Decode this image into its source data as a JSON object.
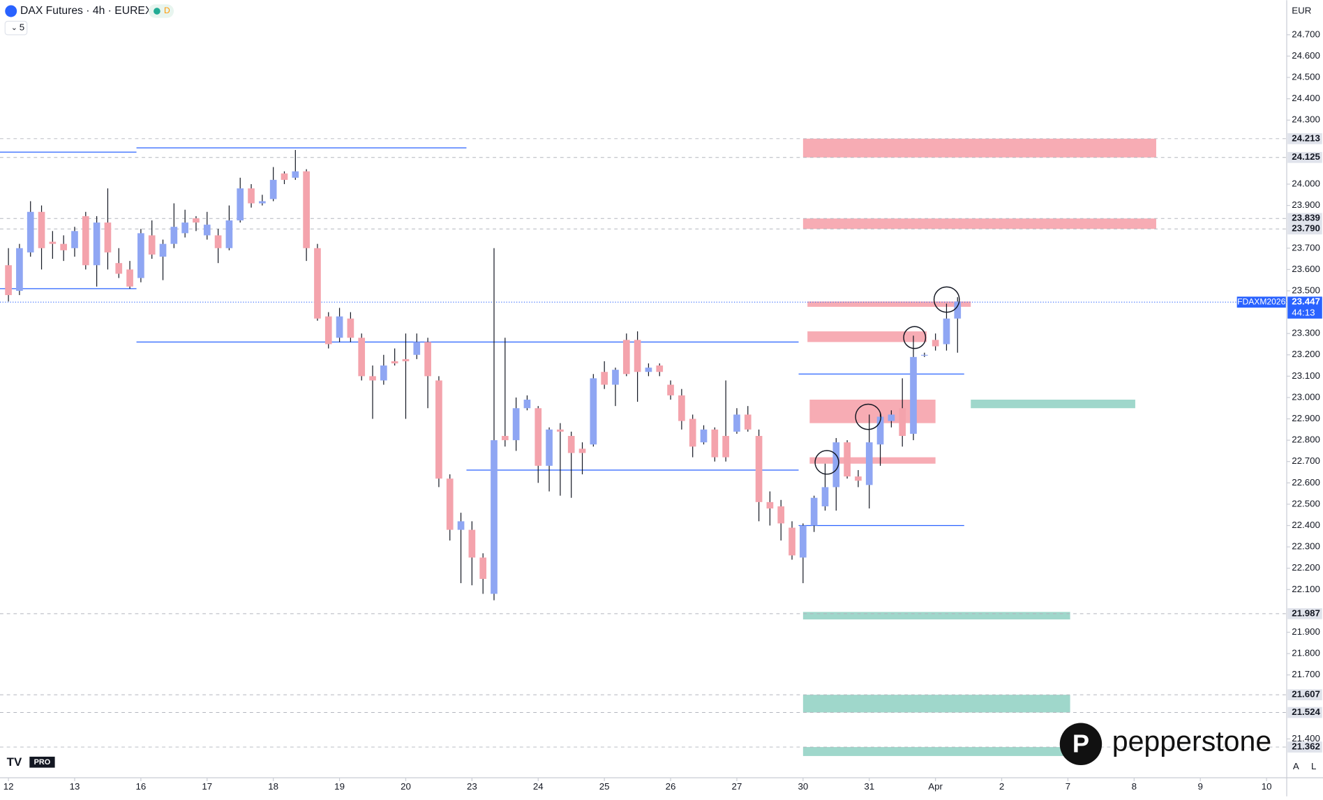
{
  "chart_data": {
    "type": "candlestick",
    "title": "DAX Futures · 4h · EUREX",
    "timeframe_badge": "D",
    "indicator_count": "5",
    "currency": "EUR",
    "watermark": "pepperstone",
    "logo_badge": "PRO",
    "scale_buttons": [
      "A",
      "L"
    ],
    "up_color": "#8fa6f3",
    "down_color": "#f4a3ac",
    "open": [
      23620,
      23500,
      23680,
      23870,
      23730,
      23720,
      23700,
      23850,
      23620,
      23820,
      23630,
      23600,
      23560,
      23760,
      23660,
      23720,
      23770,
      23840,
      23760,
      23760,
      23700,
      23830,
      23980,
      23910,
      23930,
      24050,
      24030,
      24060,
      23700,
      23380,
      23280,
      23370,
      23280,
      23100,
      23080,
      23170,
      23180,
      23200,
      23260,
      23080,
      22620,
      22380,
      22380,
      22250,
      22080,
      22820,
      22800,
      22950,
      22950,
      22680,
      22850,
      22820,
      22760,
      22780,
      23120,
      23060,
      23270,
      23270,
      23120,
      23150,
      23060,
      23010,
      22900,
      22790,
      22850,
      22820,
      22840,
      22920,
      22820,
      22510,
      22490,
      22390,
      22250,
      22400,
      22490,
      22580,
      22790,
      22630,
      22590,
      22780,
      22890,
      22950,
      22830,
      23200,
      23270,
      23250,
      23370
    ],
    "high": [
      23700,
      23720,
      23920,
      23900,
      23780,
      23760,
      23800,
      23870,
      23850,
      23980,
      23700,
      23640,
      23790,
      23830,
      23740,
      23910,
      23880,
      23850,
      23870,
      23790,
      23900,
      24030,
      24000,
      23950,
      24080,
      24060,
      24160,
      24070,
      23720,
      23400,
      23420,
      23400,
      23300,
      23150,
      23200,
      23230,
      23300,
      23300,
      23280,
      23100,
      22640,
      22460,
      22420,
      22270,
      23700,
      23280,
      23000,
      23010,
      22960,
      22860,
      22880,
      22840,
      22790,
      23110,
      23170,
      23140,
      23300,
      23310,
      23160,
      23160,
      23080,
      23040,
      22920,
      22870,
      22860,
      23080,
      22950,
      22960,
      22850,
      22560,
      22520,
      22420,
      22410,
      22540,
      22690,
      22810,
      22800,
      22660,
      22920,
      22930,
      22940,
      23090,
      23290,
      23210,
      23300,
      23440,
      23470
    ],
    "low": [
      23450,
      23480,
      23660,
      23600,
      23650,
      23640,
      23660,
      23600,
      23520,
      23600,
      23560,
      23510,
      23540,
      23650,
      23550,
      23700,
      23750,
      23780,
      23740,
      23630,
      23690,
      23820,
      23890,
      23900,
      23920,
      24000,
      24020,
      23640,
      23360,
      23230,
      23260,
      23260,
      23080,
      22900,
      23060,
      23150,
      22900,
      23180,
      22950,
      22580,
      22330,
      22130,
      22120,
      22080,
      22050,
      22770,
      22750,
      22940,
      22600,
      22560,
      22540,
      22530,
      22640,
      22770,
      23040,
      22960,
      23100,
      22980,
      23100,
      23100,
      22990,
      22850,
      22720,
      22780,
      22700,
      22700,
      22830,
      22840,
      22420,
      22400,
      22330,
      22240,
      22130,
      22370,
      22470,
      22470,
      22620,
      22580,
      22480,
      22680,
      22860,
      22770,
      22800,
      23190,
      23220,
      23220,
      23210
    ],
    "close": [
      23480,
      23700,
      23870,
      23700,
      23720,
      23690,
      23780,
      23620,
      23820,
      23680,
      23580,
      23520,
      23770,
      23670,
      23720,
      23800,
      23820,
      23820,
      23810,
      23700,
      23830,
      23980,
      23910,
      23920,
      24020,
      24020,
      24060,
      23700,
      23370,
      23250,
      23380,
      23280,
      23100,
      23080,
      23150,
      23160,
      23170,
      23260,
      23100,
      22620,
      22380,
      22420,
      22250,
      22150,
      22800,
      22800,
      22950,
      22990,
      22680,
      22850,
      22840,
      22740,
      22740,
      23090,
      23060,
      23130,
      23110,
      23120,
      23140,
      23120,
      23010,
      22890,
      22770,
      22850,
      22720,
      22720,
      22920,
      22850,
      22510,
      22480,
      22410,
      22260,
      22400,
      22530,
      22580,
      22790,
      22630,
      22610,
      22790,
      22910,
      22920,
      22820,
      23190,
      23200,
      23240,
      23370,
      23450
    ],
    "xticks": [
      {
        "value": 0,
        "label": "12"
      },
      {
        "value": 6,
        "label": "13"
      },
      {
        "value": 12,
        "label": "16"
      },
      {
        "value": 18,
        "label": "17"
      },
      {
        "value": 24,
        "label": "18"
      },
      {
        "value": 30,
        "label": "19"
      },
      {
        "value": 36,
        "label": "20"
      },
      {
        "value": 42,
        "label": "23"
      },
      {
        "value": 48,
        "label": "24"
      },
      {
        "value": 54,
        "label": "25"
      },
      {
        "value": 60,
        "label": "26"
      },
      {
        "value": 66,
        "label": "27"
      },
      {
        "value": 72,
        "label": "30"
      },
      {
        "value": 78,
        "label": "31"
      },
      {
        "value": 84,
        "label": "Apr"
      },
      {
        "value": 90,
        "label": "2"
      },
      {
        "value": 96,
        "label": "7"
      },
      {
        "value": 102,
        "label": "8"
      },
      {
        "value": 108,
        "label": "9"
      },
      {
        "value": 114,
        "label": "10"
      }
    ],
    "ylim": [
      21218,
      24862
    ],
    "yticks": [
      {
        "value": 24700,
        "label": "24.700"
      },
      {
        "value": 24600,
        "label": "24.600"
      },
      {
        "value": 24500,
        "label": "24.500"
      },
      {
        "value": 24400,
        "label": "24.400"
      },
      {
        "value": 24300,
        "label": "24.300"
      },
      {
        "value": 24000,
        "label": "24.000"
      },
      {
        "value": 23900,
        "label": "23.900"
      },
      {
        "value": 23700,
        "label": "23.700"
      },
      {
        "value": 23600,
        "label": "23.600"
      },
      {
        "value": 23500,
        "label": "23.500"
      },
      {
        "value": 23300,
        "label": "23.300"
      },
      {
        "value": 23200,
        "label": "23.200"
      },
      {
        "value": 23100,
        "label": "23.100"
      },
      {
        "value": 23000,
        "label": "23.000"
      },
      {
        "value": 22900,
        "label": "22.900"
      },
      {
        "value": 22800,
        "label": "22.800"
      },
      {
        "value": 22700,
        "label": "22.700"
      },
      {
        "value": 22600,
        "label": "22.600"
      },
      {
        "value": 22500,
        "label": "22.500"
      },
      {
        "value": 22400,
        "label": "22.400"
      },
      {
        "value": 22300,
        "label": "22.300"
      },
      {
        "value": 22200,
        "label": "22.200"
      },
      {
        "value": 22100,
        "label": "22.100"
      },
      {
        "value": 21900,
        "label": "21.900"
      },
      {
        "value": 21800,
        "label": "21.800"
      },
      {
        "value": 21700,
        "label": "21.700"
      },
      {
        "value": 21400,
        "label": "21.400"
      }
    ],
    "grid": false,
    "price_labels": [
      {
        "value": 24213,
        "label": "24.213"
      },
      {
        "value": 24125,
        "label": "24.125"
      },
      {
        "value": 23839,
        "label": "23.839"
      },
      {
        "value": 23790,
        "label": "23.790"
      },
      {
        "value": 21987,
        "label": "21.987"
      },
      {
        "value": 21607,
        "label": "21.607"
      },
      {
        "value": 21524,
        "label": "21.524"
      },
      {
        "value": 21362,
        "label": "21.362"
      }
    ],
    "last_price": {
      "value": 23447,
      "label": "23.447",
      "symbol": "FDAXM2026",
      "countdown": "44:13"
    },
    "zones": [
      {
        "low": 24125,
        "high": 24213,
        "from": 72,
        "to": 104,
        "color": "#f7a8b0"
      },
      {
        "low": 23790,
        "high": 23839,
        "from": 72,
        "to": 104,
        "color": "#f7a8b0"
      },
      {
        "low": 23425,
        "high": 23450,
        "from": 72.4,
        "to": 87.2,
        "color": "#f7a8b0"
      },
      {
        "low": 23260,
        "high": 23310,
        "from": 72.4,
        "to": 83.2,
        "color": "#f7a8b0"
      },
      {
        "low": 22880,
        "high": 22990,
        "from": 72.6,
        "to": 84,
        "color": "#f7a8b0"
      },
      {
        "low": 22690,
        "high": 22720,
        "from": 72.6,
        "to": 84,
        "color": "#f7a8b0"
      },
      {
        "low": 22950,
        "high": 22990,
        "from": 87.2,
        "to": 102.1,
        "color": "#9ad5c8"
      },
      {
        "low": 21960,
        "high": 21995,
        "from": 72,
        "to": 96.2,
        "color": "#9ad5c8"
      },
      {
        "low": 21524,
        "high": 21607,
        "from": 72,
        "to": 96.2,
        "color": "#9ad5c8"
      },
      {
        "low": 21320,
        "high": 21362,
        "from": 72,
        "to": 96.2,
        "color": "#9ad5c8"
      }
    ],
    "value_area_lines": [
      {
        "price": 24150,
        "from": -0.8,
        "to": 11.6
      },
      {
        "price": 23510,
        "from": -0.8,
        "to": 11.6
      },
      {
        "price": 24170,
        "from": 11.6,
        "to": 41.5
      },
      {
        "price": 23260,
        "from": 11.6,
        "to": 71.6
      },
      {
        "price": 22660,
        "from": 41.5,
        "to": 71.6
      },
      {
        "price": 23110,
        "from": 71.6,
        "to": 86.6
      },
      {
        "price": 22400,
        "from": 71.6,
        "to": 86.6
      }
    ]
  }
}
